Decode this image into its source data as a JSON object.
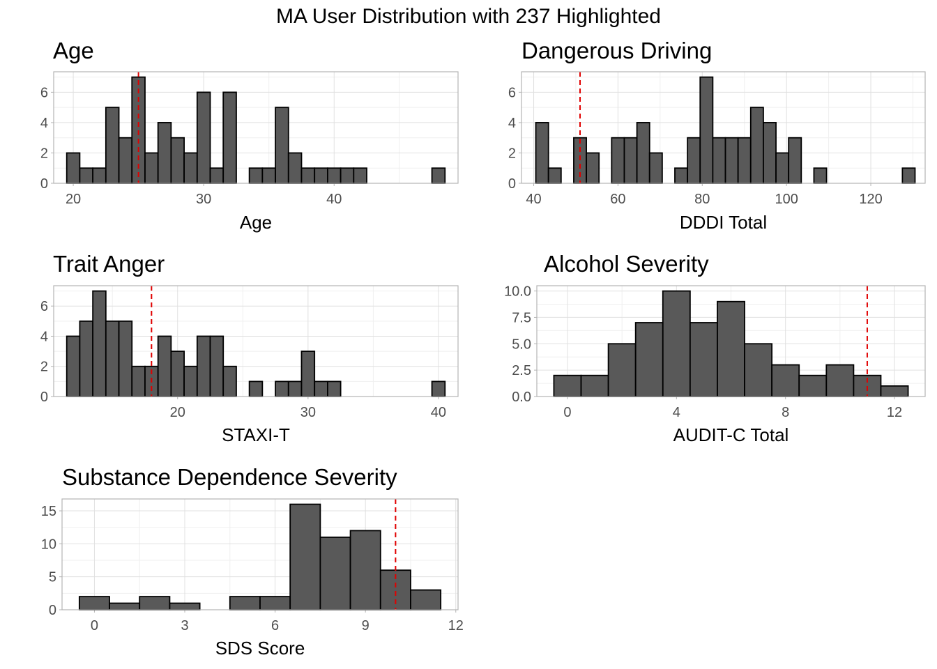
{
  "title": "MA User Distribution with 237 Highlighted",
  "chart_data": [
    {
      "type": "bar",
      "title": "Age",
      "xlabel": "Age",
      "ylabel": "",
      "grid": true,
      "xlim": [
        18.5,
        49.5
      ],
      "ylim": [
        0,
        7.35
      ],
      "xticks": [
        20,
        30,
        40
      ],
      "yticks": [
        0,
        2,
        4,
        6
      ],
      "bin_width": 1,
      "x": [
        20,
        21,
        22,
        23,
        24,
        25,
        26,
        27,
        28,
        29,
        30,
        31,
        32,
        33,
        34,
        35,
        36,
        37,
        38,
        39,
        40,
        41,
        42,
        43,
        44,
        45,
        46,
        47,
        48
      ],
      "values": [
        2,
        1,
        1,
        5,
        3,
        7,
        2,
        4,
        3,
        2,
        6,
        1,
        6,
        0,
        1,
        1,
        5,
        2,
        1,
        1,
        1,
        1,
        1,
        0,
        0,
        0,
        0,
        0,
        1
      ],
      "highlight": 25
    },
    {
      "type": "bar",
      "title": "Dangerous Driving",
      "xlabel": "DDDI Total",
      "ylabel": "",
      "grid": true,
      "xlim": [
        37.1,
        132.9
      ],
      "ylim": [
        0,
        7.35
      ],
      "xticks": [
        40,
        60,
        80,
        100,
        120
      ],
      "yticks": [
        0,
        2,
        4,
        6
      ],
      "bin_width": 3,
      "x": [
        42,
        45,
        48,
        51,
        54,
        57,
        60,
        63,
        66,
        69,
        72,
        75,
        78,
        81,
        84,
        87,
        90,
        93,
        96,
        99,
        102,
        105,
        108,
        111,
        114,
        117,
        120,
        123,
        126,
        129
      ],
      "values": [
        4,
        1,
        0,
        3,
        2,
        0,
        3,
        3,
        4,
        2,
        0,
        1,
        3,
        7,
        3,
        3,
        3,
        5,
        4,
        2,
        3,
        0,
        1,
        0,
        0,
        0,
        0,
        0,
        0,
        1
      ],
      "highlight": 51
    },
    {
      "type": "bar",
      "title": "Trait Anger",
      "xlabel": "STAXI-T",
      "ylabel": "",
      "grid": true,
      "xlim": [
        10.5,
        41.5
      ],
      "ylim": [
        0,
        7.35
      ],
      "xticks": [
        20,
        30,
        40
      ],
      "yticks": [
        0,
        2,
        4,
        6
      ],
      "bin_width": 1,
      "x": [
        12,
        13,
        14,
        15,
        16,
        17,
        18,
        19,
        20,
        21,
        22,
        23,
        24,
        25,
        26,
        27,
        28,
        29,
        30,
        31,
        32,
        33,
        34,
        35,
        36,
        37,
        38,
        39,
        40
      ],
      "values": [
        4,
        5,
        7,
        5,
        5,
        2,
        2,
        4,
        3,
        2,
        4,
        4,
        2,
        0,
        1,
        0,
        1,
        1,
        3,
        1,
        1,
        0,
        0,
        0,
        0,
        0,
        0,
        0,
        1
      ],
      "highlight": 18
    },
    {
      "type": "bar",
      "title": "Alcohol Severity",
      "xlabel": "AUDIT-C Total",
      "ylabel": "",
      "grid": true,
      "xlim": [
        -1.125,
        13.125
      ],
      "ylim": [
        0,
        10.5
      ],
      "xticks": [
        0,
        4,
        8,
        12
      ],
      "yticks": [
        0.0,
        2.5,
        5.0,
        7.5,
        10.0
      ],
      "tick_format": "0.0",
      "bin_width": 1,
      "x": [
        0,
        1,
        2,
        3,
        4,
        5,
        6,
        7,
        8,
        9,
        10,
        11,
        12
      ],
      "values": [
        2,
        2,
        5,
        7,
        10,
        7,
        9,
        5,
        3,
        2,
        3,
        2,
        1
      ],
      "highlight": 11
    },
    {
      "type": "bar",
      "title": "Substance Dependence Severity",
      "xlabel": "SDS Score",
      "ylabel": "",
      "grid": true,
      "xlim": [
        -1.075,
        12.075
      ],
      "ylim": [
        0,
        16.8
      ],
      "xticks": [
        0,
        3,
        6,
        9,
        12
      ],
      "yticks": [
        0,
        5,
        10,
        15
      ],
      "bin_width": 1,
      "x": [
        0,
        1,
        2,
        3,
        4,
        5,
        6,
        7,
        8,
        9,
        10,
        11
      ],
      "values": [
        2,
        1,
        2,
        1,
        0,
        2,
        2,
        16,
        11,
        12,
        6,
        3
      ],
      "highlight": 10
    }
  ]
}
